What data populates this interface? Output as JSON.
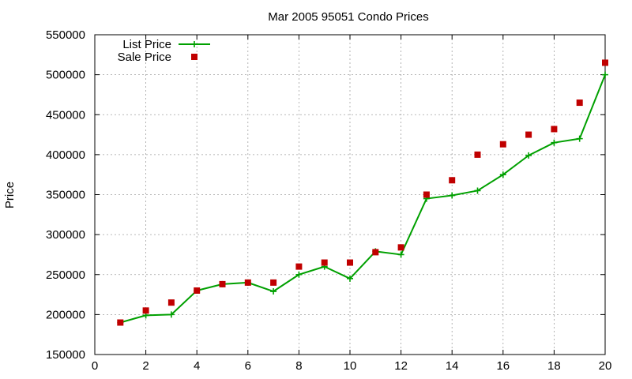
{
  "chart_data": {
    "type": "line",
    "title": "Mar 2005 95051 Condo Prices",
    "xlabel": "",
    "ylabel": "Price",
    "xlim": [
      0,
      20
    ],
    "ylim": [
      150000,
      550000
    ],
    "xticks": [
      0,
      2,
      4,
      6,
      8,
      10,
      12,
      14,
      16,
      18,
      20
    ],
    "yticks": [
      150000,
      200000,
      250000,
      300000,
      350000,
      400000,
      450000,
      500000,
      550000
    ],
    "grid": true,
    "legend_position": "top-left",
    "x": [
      1,
      2,
      3,
      4,
      5,
      6,
      7,
      8,
      9,
      10,
      11,
      12,
      13,
      14,
      15,
      16,
      17,
      18,
      19,
      20
    ],
    "series": [
      {
        "name": "List Price",
        "style": "line-with-plus-markers",
        "color": "#00a000",
        "values": [
          190000,
          199000,
          200000,
          230000,
          238000,
          240000,
          229000,
          250000,
          260000,
          245000,
          279000,
          275000,
          345000,
          349000,
          355000,
          375000,
          399000,
          415000,
          420000,
          500000
        ]
      },
      {
        "name": "Sale Price",
        "style": "square-markers",
        "color": "#c00000",
        "values": [
          190000,
          205000,
          215000,
          230000,
          238000,
          240000,
          240000,
          260000,
          265000,
          265000,
          278000,
          284000,
          350000,
          368000,
          400000,
          413000,
          425000,
          432000,
          465000,
          515000
        ]
      }
    ]
  }
}
